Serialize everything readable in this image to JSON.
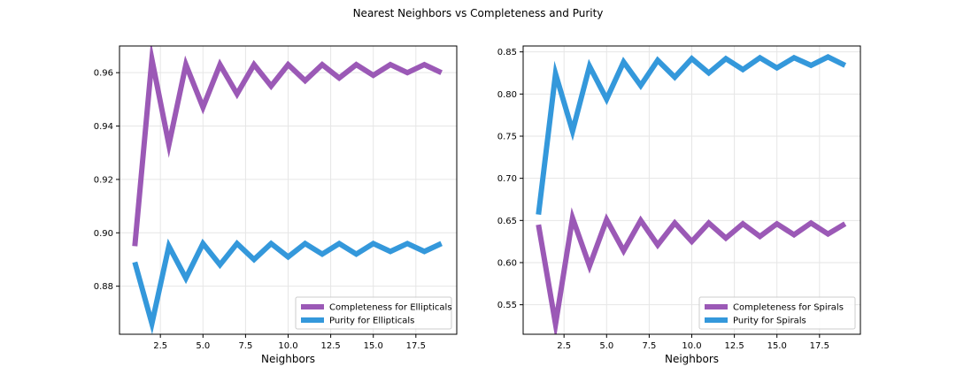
{
  "figure": {
    "title": "Nearest Neighbors vs Completeness and Purity"
  },
  "colors": {
    "completeness": "#9b59b6",
    "purity": "#3498db",
    "grid": "#e6e6e6",
    "axis": "#000000"
  },
  "chart_data": [
    {
      "type": "line",
      "title": "",
      "xlabel": "Neighbors",
      "ylabel": "",
      "xlim": [
        0.1,
        19.9
      ],
      "ylim": [
        0.862,
        0.97
      ],
      "xticks": [
        2.5,
        5.0,
        7.5,
        10.0,
        12.5,
        15.0,
        17.5
      ],
      "xtick_labels": [
        "2.5",
        "5.0",
        "7.5",
        "10.0",
        "12.5",
        "15.0",
        "17.5"
      ],
      "yticks": [
        0.88,
        0.9,
        0.92,
        0.94,
        0.96
      ],
      "ytick_labels": [
        "0.88",
        "0.90",
        "0.92",
        "0.94",
        "0.96"
      ],
      "grid": true,
      "legend": "lower-right",
      "x": [
        1,
        2,
        3,
        4,
        5,
        6,
        7,
        8,
        9,
        10,
        11,
        12,
        13,
        14,
        15,
        16,
        17,
        18,
        19
      ],
      "series": [
        {
          "name": "Completeness for Ellipticals",
          "color_key": "completeness",
          "values": [
            0.895,
            0.965,
            0.933,
            0.963,
            0.947,
            0.963,
            0.952,
            0.963,
            0.955,
            0.963,
            0.957,
            0.963,
            0.958,
            0.963,
            0.959,
            0.963,
            0.96,
            0.963,
            0.96
          ]
        },
        {
          "name": "Purity for Ellipticals",
          "color_key": "purity",
          "values": [
            0.889,
            0.866,
            0.895,
            0.883,
            0.896,
            0.888,
            0.896,
            0.89,
            0.896,
            0.891,
            0.896,
            0.892,
            0.896,
            0.892,
            0.896,
            0.893,
            0.896,
            0.893,
            0.896
          ]
        }
      ]
    },
    {
      "type": "line",
      "title": "",
      "xlabel": "Neighbors",
      "ylabel": "",
      "xlim": [
        0.1,
        19.9
      ],
      "ylim": [
        0.515,
        0.857
      ],
      "xticks": [
        2.5,
        5.0,
        7.5,
        10.0,
        12.5,
        15.0,
        17.5
      ],
      "xtick_labels": [
        "2.5",
        "5.0",
        "7.5",
        "10.0",
        "12.5",
        "15.0",
        "17.5"
      ],
      "yticks": [
        0.55,
        0.6,
        0.65,
        0.7,
        0.75,
        0.8,
        0.85
      ],
      "ytick_labels": [
        "0.55",
        "0.60",
        "0.65",
        "0.70",
        "0.75",
        "0.80",
        "0.85"
      ],
      "grid": true,
      "legend": "lower-right",
      "x": [
        1,
        2,
        3,
        4,
        5,
        6,
        7,
        8,
        9,
        10,
        11,
        12,
        13,
        14,
        15,
        16,
        17,
        18,
        19
      ],
      "series": [
        {
          "name": "Completeness for Spirals",
          "color_key": "completeness",
          "values": [
            0.645,
            0.527,
            0.653,
            0.596,
            0.651,
            0.614,
            0.65,
            0.621,
            0.647,
            0.625,
            0.647,
            0.629,
            0.646,
            0.631,
            0.646,
            0.633,
            0.647,
            0.634,
            0.646
          ]
        },
        {
          "name": "Purity for Spirals",
          "color_key": "purity",
          "values": [
            0.657,
            0.824,
            0.756,
            0.833,
            0.794,
            0.838,
            0.81,
            0.84,
            0.82,
            0.842,
            0.825,
            0.842,
            0.829,
            0.843,
            0.831,
            0.843,
            0.834,
            0.844,
            0.834
          ]
        }
      ]
    }
  ]
}
